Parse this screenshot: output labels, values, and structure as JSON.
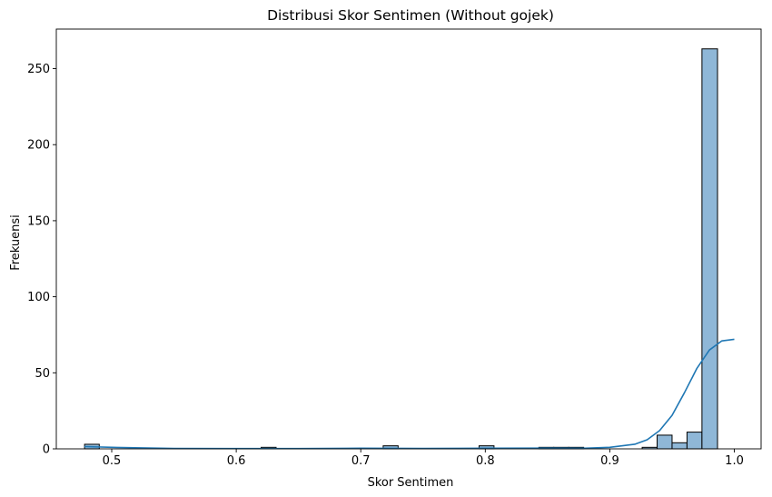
{
  "chart_data": {
    "type": "bar",
    "subtype": "histogram-with-kde",
    "title": "Distribusi Skor Sentimen (Without gojek)",
    "xlabel": "Skor Sentimen",
    "ylabel": "Frekuensi",
    "xlim": [
      0.4555,
      1.0215
    ],
    "ylim": [
      0,
      276
    ],
    "xticks": [
      0.5,
      0.6,
      0.7,
      0.8,
      0.9,
      1.0
    ],
    "xtick_labels": [
      "0.5",
      "0.6",
      "0.7",
      "0.8",
      "0.9",
      "1.0"
    ],
    "yticks": [
      0,
      50,
      100,
      150,
      200,
      250
    ],
    "ytick_labels": [
      "0",
      "50",
      "100",
      "150",
      "200",
      "250"
    ],
    "bar_color": "#8fb7d7",
    "edge_color": "#000000",
    "kde_color": "#1f77b4",
    "bins": [
      {
        "x0": 0.4782,
        "x1": 0.49,
        "count": 3
      },
      {
        "x0": 0.62,
        "x1": 0.632,
        "count": 1
      },
      {
        "x0": 0.718,
        "x1": 0.73,
        "count": 2
      },
      {
        "x0": 0.795,
        "x1": 0.807,
        "count": 2
      },
      {
        "x0": 0.843,
        "x1": 0.855,
        "count": 1
      },
      {
        "x0": 0.855,
        "x1": 0.867,
        "count": 1
      },
      {
        "x0": 0.867,
        "x1": 0.879,
        "count": 1
      },
      {
        "x0": 0.926,
        "x1": 0.938,
        "count": 1
      },
      {
        "x0": 0.938,
        "x1": 0.95,
        "count": 9
      },
      {
        "x0": 0.95,
        "x1": 0.962,
        "count": 4
      },
      {
        "x0": 0.962,
        "x1": 0.974,
        "count": 11
      },
      {
        "x0": 0.974,
        "x1": 0.9865,
        "count": 263
      }
    ],
    "kde": {
      "x": [
        0.478,
        0.5,
        0.55,
        0.6,
        0.65,
        0.7,
        0.75,
        0.8,
        0.85,
        0.88,
        0.9,
        0.92,
        0.93,
        0.94,
        0.95,
        0.96,
        0.97,
        0.98,
        0.99,
        1.0
      ],
      "y": [
        1.5,
        1.0,
        0.3,
        0.2,
        0.2,
        0.4,
        0.3,
        0.4,
        0.5,
        0.4,
        1.0,
        3.0,
        6.0,
        12.0,
        22.0,
        37.0,
        53.0,
        65.0,
        71.0,
        72.0
      ]
    },
    "grid": false,
    "legend": "none"
  }
}
